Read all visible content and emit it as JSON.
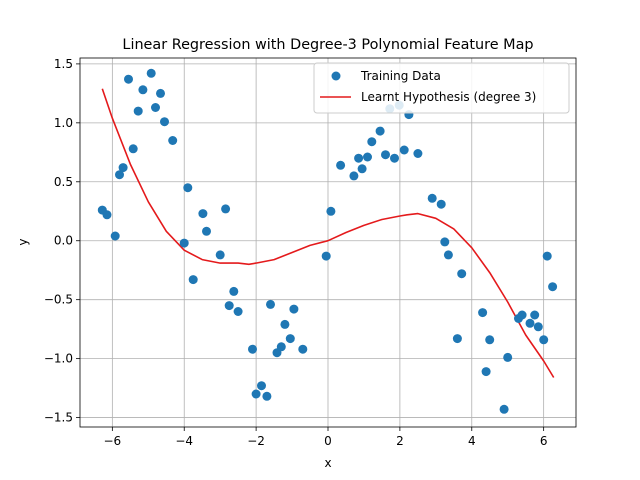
{
  "chart_data": {
    "type": "scatter",
    "title": "Linear Regression with Degree-3 Polynomial Feature Map",
    "xlabel": "x",
    "ylabel": "y",
    "xlim": [
      -6.9,
      6.9
    ],
    "ylim": [
      -1.58,
      1.55
    ],
    "xticks": [
      -6,
      -4,
      -2,
      0,
      2,
      4,
      6
    ],
    "yticks": [
      -1.5,
      -1.0,
      -0.5,
      0.0,
      0.5,
      1.0,
      1.5
    ],
    "xtick_labels": [
      "−6",
      "−4",
      "−2",
      "0",
      "2",
      "4",
      "6"
    ],
    "ytick_labels": [
      "−1.5",
      "−1.0",
      "−0.5",
      "0.0",
      "0.5",
      "1.0",
      "1.5"
    ],
    "grid": true,
    "legend": "top-right",
    "series": [
      {
        "name": "Training Data",
        "kind": "scatter",
        "color": "#1f77b4",
        "points": [
          [
            -6.28,
            0.26
          ],
          [
            -6.15,
            0.22
          ],
          [
            -5.92,
            0.04
          ],
          [
            -5.8,
            0.56
          ],
          [
            -5.7,
            0.62
          ],
          [
            -5.55,
            1.37
          ],
          [
            -5.42,
            0.78
          ],
          [
            -5.28,
            1.1
          ],
          [
            -5.15,
            1.28
          ],
          [
            -4.92,
            1.42
          ],
          [
            -4.8,
            1.13
          ],
          [
            -4.66,
            1.25
          ],
          [
            -4.55,
            1.01
          ],
          [
            -4.32,
            0.85
          ],
          [
            -4.0,
            -0.02
          ],
          [
            -3.9,
            0.45
          ],
          [
            -3.75,
            -0.33
          ],
          [
            -3.48,
            0.23
          ],
          [
            -3.38,
            0.08
          ],
          [
            -3.0,
            -0.12
          ],
          [
            -2.85,
            0.27
          ],
          [
            -2.75,
            -0.55
          ],
          [
            -2.62,
            -0.43
          ],
          [
            -2.5,
            -0.6
          ],
          [
            -2.1,
            -0.92
          ],
          [
            -2.0,
            -1.3
          ],
          [
            -1.85,
            -1.23
          ],
          [
            -1.7,
            -1.32
          ],
          [
            -1.6,
            -0.54
          ],
          [
            -1.42,
            -0.95
          ],
          [
            -1.3,
            -0.9
          ],
          [
            -1.2,
            -0.71
          ],
          [
            -1.05,
            -0.83
          ],
          [
            -0.95,
            -0.58
          ],
          [
            -0.7,
            -0.92
          ],
          [
            -0.05,
            -0.13
          ],
          [
            0.08,
            0.25
          ],
          [
            0.35,
            0.64
          ],
          [
            0.72,
            0.55
          ],
          [
            0.85,
            0.7
          ],
          [
            0.95,
            0.61
          ],
          [
            1.1,
            0.71
          ],
          [
            1.22,
            0.84
          ],
          [
            1.45,
            0.93
          ],
          [
            1.6,
            0.73
          ],
          [
            1.72,
            1.12
          ],
          [
            1.85,
            0.7
          ],
          [
            1.98,
            1.15
          ],
          [
            2.12,
            0.77
          ],
          [
            2.25,
            1.07
          ],
          [
            2.5,
            0.74
          ],
          [
            2.9,
            0.36
          ],
          [
            3.15,
            0.31
          ],
          [
            3.25,
            -0.01
          ],
          [
            3.35,
            -0.12
          ],
          [
            3.6,
            -0.83
          ],
          [
            3.72,
            -0.28
          ],
          [
            4.3,
            -0.61
          ],
          [
            4.4,
            -1.11
          ],
          [
            4.5,
            -0.84
          ],
          [
            4.9,
            -1.43
          ],
          [
            5.0,
            -0.99
          ],
          [
            5.3,
            -0.66
          ],
          [
            5.4,
            -0.63
          ],
          [
            5.62,
            -0.7
          ],
          [
            5.75,
            -0.63
          ],
          [
            5.85,
            -0.73
          ],
          [
            6.0,
            -0.84
          ],
          [
            6.1,
            -0.13
          ],
          [
            6.25,
            -0.39
          ]
        ]
      },
      {
        "name": "Learnt Hypothesis (degree 3)",
        "kind": "line",
        "color": "#e41a1c",
        "points": [
          [
            -6.28,
            1.29
          ],
          [
            -6.0,
            1.04
          ],
          [
            -5.5,
            0.65
          ],
          [
            -5.0,
            0.33
          ],
          [
            -4.5,
            0.08
          ],
          [
            -4.0,
            -0.08
          ],
          [
            -3.5,
            -0.16
          ],
          [
            -3.0,
            -0.19
          ],
          [
            -2.5,
            -0.19
          ],
          [
            -2.2,
            -0.2
          ],
          [
            -2.0,
            -0.19
          ],
          [
            -1.5,
            -0.16
          ],
          [
            -1.0,
            -0.1
          ],
          [
            -0.5,
            -0.04
          ],
          [
            0.0,
            0.0
          ],
          [
            0.5,
            0.07
          ],
          [
            1.0,
            0.13
          ],
          [
            1.5,
            0.18
          ],
          [
            2.0,
            0.21
          ],
          [
            2.2,
            0.22
          ],
          [
            2.5,
            0.23
          ],
          [
            3.0,
            0.19
          ],
          [
            3.5,
            0.1
          ],
          [
            4.0,
            -0.06
          ],
          [
            4.5,
            -0.27
          ],
          [
            5.0,
            -0.52
          ],
          [
            5.5,
            -0.8
          ],
          [
            6.0,
            -1.02
          ],
          [
            6.28,
            -1.16
          ]
        ]
      }
    ]
  }
}
